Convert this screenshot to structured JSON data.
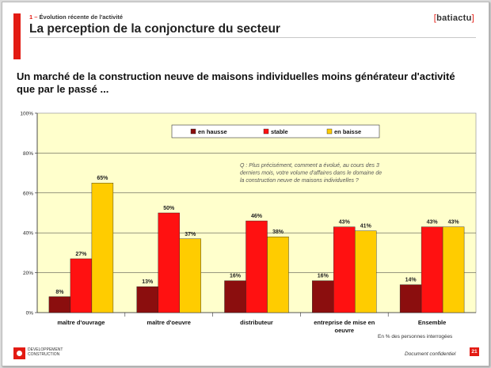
{
  "header": {
    "section_number": "1 –",
    "section_label": "Évolution récente de l'activité",
    "title": "La perception de la conjoncture du secteur",
    "brand": "batiactu",
    "brand_open": "[",
    "brand_close": "]"
  },
  "subtitle": "Un marché de la construction neuve de maisons individuelles moins générateur d'activité que par le passé ...",
  "chart_data": {
    "type": "bar",
    "categories": [
      "maître d'ouvrage",
      "maître d'oeuvre",
      "distributeur",
      "entreprise de mise en oeuvre",
      "Ensemble"
    ],
    "category_lines": [
      [
        "maître d'ouvrage"
      ],
      [
        "maître d'oeuvre"
      ],
      [
        "distributeur"
      ],
      [
        "entreprise de mise en",
        "oeuvre"
      ],
      [
        "Ensemble"
      ]
    ],
    "series": [
      {
        "name": "en hausse",
        "color": "#8b0e0e",
        "values": [
          8,
          13,
          16,
          16,
          14
        ]
      },
      {
        "name": "stable",
        "color": "#ff1111",
        "values": [
          27,
          50,
          46,
          43,
          43
        ]
      },
      {
        "name": "en baisse",
        "color": "#ffcc00",
        "values": [
          65,
          37,
          38,
          41,
          43
        ]
      }
    ],
    "ylim": [
      0,
      100
    ],
    "yticks": [
      0,
      20,
      40,
      60,
      80,
      100
    ],
    "ytick_labels": [
      "0%",
      "20%",
      "40%",
      "60%",
      "80%",
      "100%"
    ],
    "value_suffix": "%",
    "legend_position": "top-center",
    "plot_background": "#ffffcc",
    "annotation": [
      "Q : Plus précisément, comment a évolué, au cours des 3",
      "derniers mois, votre volume d'affaires dans le domaine de",
      "la construction neuve de maisons individuelles ?"
    ]
  },
  "footnote": "En % des personnes interrogées",
  "footer": {
    "logo_line1": "DEVELOPPEMENT",
    "logo_line2": "CONSTRUCTION",
    "confidential": "Document confidentiel",
    "page_number": "21"
  },
  "colors": {
    "accent": "#e31b13",
    "plot_bg": "#ffffcc"
  }
}
